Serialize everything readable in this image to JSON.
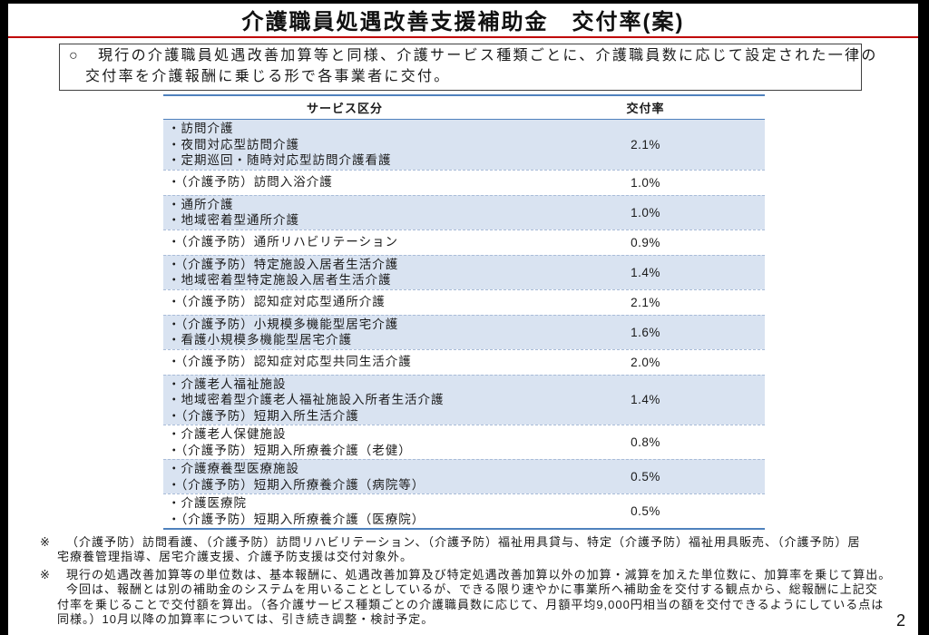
{
  "colors": {
    "accent_red": "#c00000",
    "table_blue": "#4f81bd",
    "row_shade": "#d9e3f1"
  },
  "title": "介護職員処遇改善支援補助金　交付率(案)",
  "intro": {
    "bullet": "○",
    "lines": [
      "現行の介護職員処遇改善加算等と同様、介護サービス種類ごとに、介護職員数に応じて設定された一律の",
      "交付率を介護報酬に乗じる形で各事業者に交付。"
    ]
  },
  "table": {
    "headers": {
      "service": "サービス区分",
      "rate": "交付率"
    },
    "rows": [
      {
        "services": [
          "・訪問介護",
          "・夜間対応型訪問介護",
          "・定期巡回・随時対応型訪問介護看護"
        ],
        "rate": "2.1%"
      },
      {
        "services": [
          "・（介護予防）訪問入浴介護"
        ],
        "rate": "1.0%"
      },
      {
        "services": [
          "・通所介護",
          "・地域密着型通所介護"
        ],
        "rate": "1.0%"
      },
      {
        "services": [
          "・（介護予防）通所リハビリテーション"
        ],
        "rate": "0.9%"
      },
      {
        "services": [
          "・（介護予防）特定施設入居者生活介護",
          "・地域密着型特定施設入居者生活介護"
        ],
        "rate": "1.4%"
      },
      {
        "services": [
          "・（介護予防）認知症対応型通所介護"
        ],
        "rate": "2.1%"
      },
      {
        "services": [
          "・（介護予防）小規模多機能型居宅介護",
          "・看護小規模多機能型居宅介護"
        ],
        "rate": "1.6%"
      },
      {
        "services": [
          "・（介護予防）認知症対応型共同生活介護"
        ],
        "rate": "2.0%"
      },
      {
        "services": [
          "・介護老人福祉施設",
          "・地域密着型介護老人福祉施設入所者生活介護",
          "・（介護予防）短期入所生活介護"
        ],
        "rate": "1.4%"
      },
      {
        "services": [
          "・介護老人保健施設",
          "・（介護予防）短期入所療養介護（老健）"
        ],
        "rate": "0.8%"
      },
      {
        "services": [
          "・介護療養型医療施設",
          "・（介護予防）短期入所療養介護（病院等）"
        ],
        "rate": "0.5%"
      },
      {
        "services": [
          "・介護医療院",
          "・（介護予防）短期入所療養介護（医療院）"
        ],
        "rate": "0.5%"
      }
    ]
  },
  "notes": [
    {
      "mark": "※",
      "lines": [
        "（介護予防）訪問看護、（介護予防）訪問リハビリテーション、（介護予防）福祉用具貸与、特定（介護予防）福祉用具販売、（介護予防）居",
        "宅療養管理指導、居宅介護支援、介護予防支援は交付対象外。"
      ]
    },
    {
      "mark": "※",
      "lines": [
        "現行の処遇改善加算等の単位数は、基本報酬に、処遇改善加算及び特定処遇改善加算以外の加算・減算を加えた単位数に、加算率を乗じて算出。",
        "今回は、報酬とは別の補助金のシステムを用いることとしているが、できる限り速やかに事業所へ補助金を交付する観点から、総報酬に上記交",
        "付率を乗じることで交付額を算出。（各介護サービス種類ごとの介護職員数に応じて、月額平均9,000円相当の額を交付できるようにしている点は",
        "同様。）10月以降の加算率については、引き続き調整・検討予定。"
      ]
    }
  ],
  "page_number": "2"
}
